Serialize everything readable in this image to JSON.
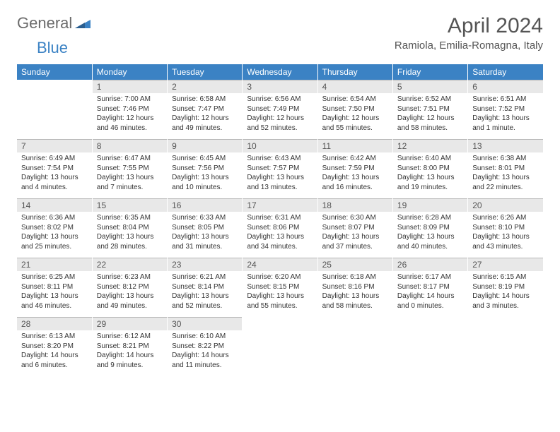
{
  "logo": {
    "text1": "General",
    "text2": "Blue"
  },
  "title": "April 2024",
  "location": "Ramiola, Emilia-Romagna, Italy",
  "colors": {
    "header_bg": "#3b82c4",
    "daynum_bg": "#e8e8e8",
    "daynum_border": "#b8b8b8",
    "text": "#333333",
    "title_text": "#555555"
  },
  "weekdays": [
    "Sunday",
    "Monday",
    "Tuesday",
    "Wednesday",
    "Thursday",
    "Friday",
    "Saturday"
  ],
  "grid": {
    "start_weekday": 1,
    "num_days": 30
  },
  "days": {
    "1": {
      "sunrise": "7:00 AM",
      "sunset": "7:46 PM",
      "daylight": "12 hours and 46 minutes."
    },
    "2": {
      "sunrise": "6:58 AM",
      "sunset": "7:47 PM",
      "daylight": "12 hours and 49 minutes."
    },
    "3": {
      "sunrise": "6:56 AM",
      "sunset": "7:49 PM",
      "daylight": "12 hours and 52 minutes."
    },
    "4": {
      "sunrise": "6:54 AM",
      "sunset": "7:50 PM",
      "daylight": "12 hours and 55 minutes."
    },
    "5": {
      "sunrise": "6:52 AM",
      "sunset": "7:51 PM",
      "daylight": "12 hours and 58 minutes."
    },
    "6": {
      "sunrise": "6:51 AM",
      "sunset": "7:52 PM",
      "daylight": "13 hours and 1 minute."
    },
    "7": {
      "sunrise": "6:49 AM",
      "sunset": "7:54 PM",
      "daylight": "13 hours and 4 minutes."
    },
    "8": {
      "sunrise": "6:47 AM",
      "sunset": "7:55 PM",
      "daylight": "13 hours and 7 minutes."
    },
    "9": {
      "sunrise": "6:45 AM",
      "sunset": "7:56 PM",
      "daylight": "13 hours and 10 minutes."
    },
    "10": {
      "sunrise": "6:43 AM",
      "sunset": "7:57 PM",
      "daylight": "13 hours and 13 minutes."
    },
    "11": {
      "sunrise": "6:42 AM",
      "sunset": "7:59 PM",
      "daylight": "13 hours and 16 minutes."
    },
    "12": {
      "sunrise": "6:40 AM",
      "sunset": "8:00 PM",
      "daylight": "13 hours and 19 minutes."
    },
    "13": {
      "sunrise": "6:38 AM",
      "sunset": "8:01 PM",
      "daylight": "13 hours and 22 minutes."
    },
    "14": {
      "sunrise": "6:36 AM",
      "sunset": "8:02 PM",
      "daylight": "13 hours and 25 minutes."
    },
    "15": {
      "sunrise": "6:35 AM",
      "sunset": "8:04 PM",
      "daylight": "13 hours and 28 minutes."
    },
    "16": {
      "sunrise": "6:33 AM",
      "sunset": "8:05 PM",
      "daylight": "13 hours and 31 minutes."
    },
    "17": {
      "sunrise": "6:31 AM",
      "sunset": "8:06 PM",
      "daylight": "13 hours and 34 minutes."
    },
    "18": {
      "sunrise": "6:30 AM",
      "sunset": "8:07 PM",
      "daylight": "13 hours and 37 minutes."
    },
    "19": {
      "sunrise": "6:28 AM",
      "sunset": "8:09 PM",
      "daylight": "13 hours and 40 minutes."
    },
    "20": {
      "sunrise": "6:26 AM",
      "sunset": "8:10 PM",
      "daylight": "13 hours and 43 minutes."
    },
    "21": {
      "sunrise": "6:25 AM",
      "sunset": "8:11 PM",
      "daylight": "13 hours and 46 minutes."
    },
    "22": {
      "sunrise": "6:23 AM",
      "sunset": "8:12 PM",
      "daylight": "13 hours and 49 minutes."
    },
    "23": {
      "sunrise": "6:21 AM",
      "sunset": "8:14 PM",
      "daylight": "13 hours and 52 minutes."
    },
    "24": {
      "sunrise": "6:20 AM",
      "sunset": "8:15 PM",
      "daylight": "13 hours and 55 minutes."
    },
    "25": {
      "sunrise": "6:18 AM",
      "sunset": "8:16 PM",
      "daylight": "13 hours and 58 minutes."
    },
    "26": {
      "sunrise": "6:17 AM",
      "sunset": "8:17 PM",
      "daylight": "14 hours and 0 minutes."
    },
    "27": {
      "sunrise": "6:15 AM",
      "sunset": "8:19 PM",
      "daylight": "14 hours and 3 minutes."
    },
    "28": {
      "sunrise": "6:13 AM",
      "sunset": "8:20 PM",
      "daylight": "14 hours and 6 minutes."
    },
    "29": {
      "sunrise": "6:12 AM",
      "sunset": "8:21 PM",
      "daylight": "14 hours and 9 minutes."
    },
    "30": {
      "sunrise": "6:10 AM",
      "sunset": "8:22 PM",
      "daylight": "14 hours and 11 minutes."
    }
  },
  "labels": {
    "sunrise": "Sunrise:",
    "sunset": "Sunset:",
    "daylight": "Daylight:"
  }
}
